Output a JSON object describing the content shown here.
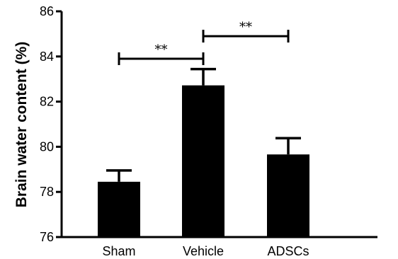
{
  "chart_data": {
    "type": "bar",
    "title": "",
    "xlabel": "",
    "ylabel": "Brain water content (%)",
    "categories": [
      "Sham",
      "Vehicle",
      "ADSCs"
    ],
    "values": [
      78.45,
      82.72,
      79.66
    ],
    "error": [
      0.5,
      0.72,
      0.72
    ],
    "ylim": [
      76,
      86
    ],
    "yticks": [
      "76",
      "78",
      "80",
      "82",
      "84",
      "86"
    ],
    "grid": false,
    "bar_color": "#000000",
    "significance": [
      {
        "from": "Sham",
        "to": "Vehicle",
        "label": "**",
        "y": 83.9
      },
      {
        "from": "Vehicle",
        "to": "ADSCs",
        "label": "**",
        "y": 84.9
      }
    ]
  }
}
